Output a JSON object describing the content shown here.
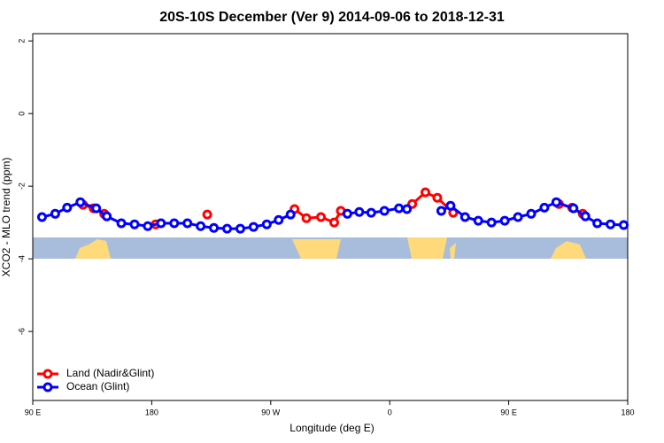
{
  "chart_data": {
    "type": "line",
    "title": "20S-10S December (Ver 9)   2014-09-06 to 2018-12-31",
    "xlabel": "Longitude (deg E)",
    "ylabel": "XCO2 - MLO trend (ppm)",
    "xlim": [
      90,
      540
    ],
    "ylim": [
      -7.9,
      2.2
    ],
    "xticks": [
      {
        "value": 90,
        "label": "90 E"
      },
      {
        "value": 180,
        "label": "180"
      },
      {
        "value": 270,
        "label": "90 W"
      },
      {
        "value": 360,
        "label": "0"
      },
      {
        "value": 450,
        "label": "90 E"
      },
      {
        "value": 540,
        "label": "180"
      }
    ],
    "yticks": [
      2,
      0,
      -2,
      -4,
      -6
    ],
    "legend": "bottom-left",
    "series": [
      {
        "name": "Land (Nadir&Glint)",
        "color": "#ff0000",
        "x": [
          128,
          136,
          144,
          160,
          183,
          200,
          222,
          255,
          288,
          297,
          308,
          318,
          323,
          350,
          377,
          387,
          396,
          408,
          450,
          488,
          498,
          506
        ],
        "values": [
          -2.51,
          -2.61,
          -2.76,
          null,
          -3.05,
          null,
          -2.78,
          null,
          -2.63,
          -2.88,
          -2.85,
          -3.0,
          -2.68,
          null,
          -2.49,
          -2.17,
          -2.32,
          -2.73,
          null,
          -2.49,
          -2.59,
          -2.76
        ]
      },
      {
        "name": "Ocean (Glint)",
        "color": "#0000ff",
        "x": [
          97,
          107,
          116,
          126,
          138,
          146,
          157,
          167,
          177,
          187,
          197,
          207,
          217,
          227,
          237,
          247,
          257,
          267,
          276,
          285,
          307,
          328,
          337,
          346,
          356,
          367,
          373,
          386,
          399,
          406,
          417,
          427,
          437,
          447,
          457,
          467,
          477,
          486,
          499,
          508,
          517,
          527,
          537
        ],
        "values": [
          -2.85,
          -2.76,
          -2.59,
          -2.44,
          -2.61,
          -2.83,
          -3.02,
          -3.05,
          -3.1,
          -3.02,
          -3.02,
          -3.02,
          -3.1,
          -3.15,
          -3.17,
          -3.17,
          -3.12,
          -3.05,
          -2.93,
          -2.78,
          null,
          -2.76,
          -2.71,
          -2.73,
          -2.68,
          -2.61,
          -2.63,
          null,
          -2.68,
          -2.54,
          -2.85,
          -2.95,
          -3.0,
          -2.95,
          -2.85,
          -2.76,
          -2.59,
          -2.44,
          -2.61,
          -2.83,
          -3.02,
          -3.05,
          -3.07
        ]
      }
    ]
  }
}
